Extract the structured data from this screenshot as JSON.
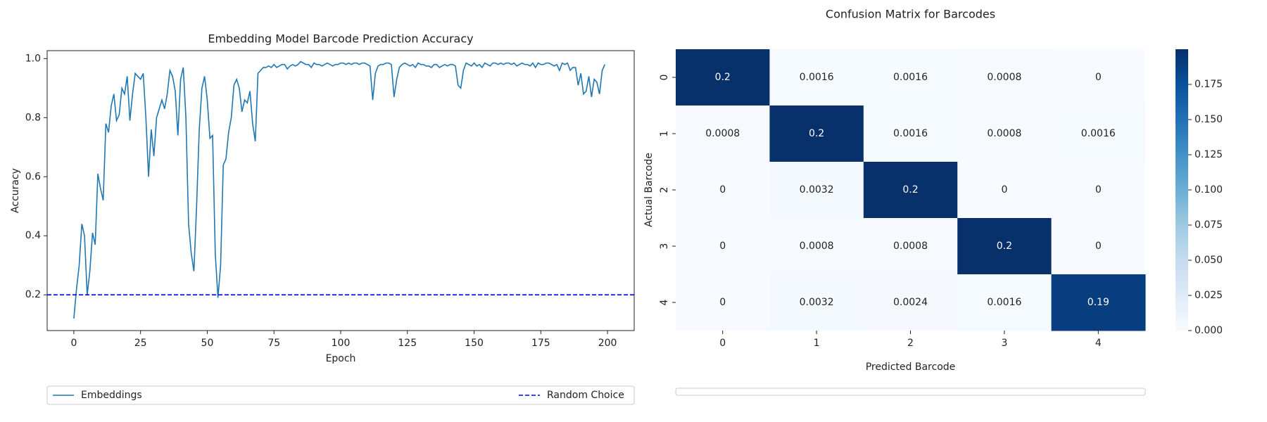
{
  "chart_data": [
    {
      "type": "line",
      "title": "Embedding Model Barcode Prediction Accuracy",
      "xlabel": "Epoch",
      "ylabel": "Accuracy",
      "x": [
        0,
        1,
        2,
        3,
        4,
        5,
        6,
        7,
        8,
        9,
        10,
        11,
        12,
        13,
        14,
        15,
        16,
        17,
        18,
        19,
        20,
        21,
        22,
        23,
        24,
        25,
        26,
        27,
        28,
        29,
        30,
        31,
        32,
        33,
        34,
        35,
        36,
        37,
        38,
        39,
        40,
        41,
        42,
        43,
        44,
        45,
        46,
        47,
        48,
        49,
        50,
        51,
        52,
        53,
        54,
        55,
        56,
        57,
        58,
        59,
        60,
        61,
        62,
        63,
        64,
        65,
        66,
        67,
        68,
        69,
        70,
        71,
        72,
        73,
        74,
        75,
        76,
        77,
        78,
        79,
        80,
        81,
        82,
        83,
        84,
        85,
        86,
        87,
        88,
        89,
        90,
        91,
        92,
        93,
        94,
        95,
        96,
        97,
        98,
        99,
        100,
        101,
        102,
        103,
        104,
        105,
        106,
        107,
        108,
        109,
        110,
        111,
        112,
        113,
        114,
        115,
        116,
        117,
        118,
        119,
        120,
        121,
        122,
        123,
        124,
        125,
        126,
        127,
        128,
        129,
        130,
        131,
        132,
        133,
        134,
        135,
        136,
        137,
        138,
        139,
        140,
        141,
        142,
        143,
        144,
        145,
        146,
        147,
        148,
        149,
        150,
        151,
        152,
        153,
        154,
        155,
        156,
        157,
        158,
        159,
        160,
        161,
        162,
        163,
        164,
        165,
        166,
        167,
        168,
        169,
        170,
        171,
        172,
        173,
        174,
        175,
        176,
        177,
        178,
        179,
        180,
        181,
        182,
        183,
        184,
        185,
        186,
        187,
        188,
        189,
        190,
        191,
        192,
        193,
        194,
        195,
        196,
        197,
        198,
        199
      ],
      "series": [
        {
          "name": "Embeddings",
          "color": "#1f77b4",
          "values": [
            0.12,
            0.22,
            0.3,
            0.44,
            0.4,
            0.2,
            0.28,
            0.41,
            0.37,
            0.61,
            0.56,
            0.52,
            0.78,
            0.75,
            0.84,
            0.88,
            0.79,
            0.81,
            0.9,
            0.88,
            0.94,
            0.79,
            0.88,
            0.95,
            0.94,
            0.93,
            0.95,
            0.8,
            0.6,
            0.76,
            0.67,
            0.8,
            0.83,
            0.86,
            0.83,
            0.88,
            0.96,
            0.94,
            0.89,
            0.74,
            0.93,
            0.97,
            0.8,
            0.44,
            0.34,
            0.28,
            0.5,
            0.76,
            0.9,
            0.94,
            0.86,
            0.73,
            0.74,
            0.34,
            0.19,
            0.3,
            0.64,
            0.66,
            0.75,
            0.8,
            0.91,
            0.93,
            0.9,
            0.82,
            0.86,
            0.85,
            0.89,
            0.78,
            0.72,
            0.95,
            0.96,
            0.97,
            0.97,
            0.975,
            0.97,
            0.98,
            0.97,
            0.975,
            0.98,
            0.98,
            0.965,
            0.975,
            0.98,
            0.975,
            0.98,
            0.99,
            0.985,
            0.98,
            0.98,
            0.97,
            0.985,
            0.98,
            0.98,
            0.975,
            0.98,
            0.985,
            0.98,
            0.975,
            0.98,
            0.98,
            0.985,
            0.985,
            0.98,
            0.985,
            0.98,
            0.985,
            0.985,
            0.98,
            0.985,
            0.985,
            0.98,
            0.975,
            0.86,
            0.95,
            0.975,
            0.98,
            0.98,
            0.985,
            0.985,
            0.98,
            0.87,
            0.93,
            0.97,
            0.98,
            0.985,
            0.98,
            0.975,
            0.98,
            0.97,
            0.985,
            0.98,
            0.98,
            0.975,
            0.975,
            0.97,
            0.98,
            0.98,
            0.97,
            0.975,
            0.98,
            0.975,
            0.98,
            0.98,
            0.975,
            0.91,
            0.9,
            0.96,
            0.985,
            0.98,
            0.975,
            0.985,
            0.975,
            0.98,
            0.97,
            0.985,
            0.98,
            0.975,
            0.985,
            0.985,
            0.98,
            0.985,
            0.98,
            0.985,
            0.985,
            0.98,
            0.985,
            0.975,
            0.98,
            0.985,
            0.98,
            0.98,
            0.975,
            0.985,
            0.97,
            0.985,
            0.98,
            0.98,
            0.985,
            0.985,
            0.98,
            0.975,
            0.98,
            0.96,
            0.985,
            0.98,
            0.985,
            0.96,
            0.97,
            0.97,
            0.91,
            0.95,
            0.88,
            0.89,
            0.94,
            0.87,
            0.93,
            0.92,
            0.88,
            0.96,
            0.98
          ]
        }
      ],
      "hlines": [
        {
          "name": "Random Choice",
          "color": "#0000ff",
          "value": 0.2,
          "dashed": true
        }
      ],
      "xlim": [
        -10,
        210
      ],
      "ylim": [
        0.079,
        1.027
      ],
      "xticks": [
        0,
        25,
        50,
        75,
        100,
        125,
        150,
        175,
        200
      ],
      "yticks": [
        0.2,
        0.4,
        0.6,
        0.8,
        {
          "value": 1,
          "label": "1.0"
        }
      ],
      "grid": false,
      "legend": "below"
    },
    {
      "type": "heatmap",
      "title": "Confusion Matrix for Barcodes",
      "xlabel": "Predicted Barcode",
      "ylabel": "Actual Barcode",
      "categories": [
        "0",
        "1",
        "2",
        "3",
        "4"
      ],
      "values": [
        [
          0.2,
          0.0016,
          0.0016,
          0.0008,
          0
        ],
        [
          0.0008,
          0.2,
          0.0016,
          0.0008,
          0.0016
        ],
        [
          0,
          0.0032,
          0.2,
          0,
          0
        ],
        [
          0,
          0.0008,
          0.0008,
          0.2,
          0
        ],
        [
          0,
          0.0032,
          0.0024,
          0.0016,
          0.19
        ]
      ],
      "cmap": "Blues",
      "clim": [
        0,
        0.2
      ],
      "cticks": [
        {
          "value": 0,
          "label": "0.000"
        },
        {
          "value": 0.025,
          "label": "0.025"
        },
        {
          "value": 0.05,
          "label": "0.050"
        },
        {
          "value": 0.075,
          "label": "0.075"
        },
        {
          "value": 0.1,
          "label": "0.100"
        },
        {
          "value": 0.125,
          "label": "0.125"
        },
        {
          "value": 0.15,
          "label": "0.150"
        },
        {
          "value": 0.175,
          "label": "0.175"
        }
      ]
    }
  ]
}
